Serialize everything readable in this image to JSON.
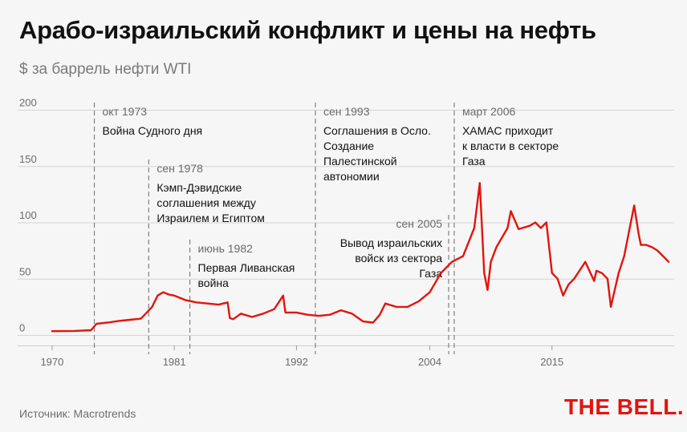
{
  "header": {
    "title": "Арабо-израильский конфликт и цены на нефть",
    "subtitle": "$ за баррель нефти WTI"
  },
  "footer": {
    "source": "Источник: Macrotrends",
    "logo": "THE BELL."
  },
  "colors": {
    "line": "#e3140d",
    "grid": "#d4d4d4",
    "annotation_line": "#808080",
    "logo": "#e3140d"
  },
  "chart_data": {
    "type": "line",
    "xlabel": "",
    "ylabel": "",
    "xlim": [
      1969.5,
      2026
    ],
    "ylim": [
      0,
      200
    ],
    "yticks": [
      0,
      50,
      100,
      150,
      200
    ],
    "xticks": [
      1970,
      1981,
      1992,
      2004,
      2015
    ],
    "grid": true,
    "series": [
      {
        "x": [
          1970,
          1971,
          1972,
          1973.5,
          1974,
          1975,
          1976,
          1977,
          1978,
          1979,
          1979.5,
          1980,
          1980.5,
          1981,
          1981.5,
          1982,
          1983,
          1984,
          1985,
          1985.8,
          1986,
          1986.3,
          1987,
          1988,
          1989,
          1990,
          1990.8,
          1991,
          1992,
          1993,
          1994,
          1995,
          1996,
          1997,
          1998,
          1998.9,
          1999.5,
          2000,
          2001,
          2002,
          2003,
          2004,
          2005,
          2005.7,
          2006,
          2007,
          2008.0,
          2008.5,
          2008.9,
          2009.2,
          2009.5,
          2010,
          2011,
          2011.3,
          2012,
          2013,
          2013.5,
          2014,
          2014.5,
          2015,
          2015.5,
          2016,
          2016.5,
          2017,
          2018,
          2018.8,
          2019,
          2019.5,
          2020,
          2020.3,
          2020.6,
          2021,
          2021.5,
          2022,
          2022.4,
          2022.8,
          2023,
          2023.5,
          2024,
          2024.5,
          2025,
          2025.5
        ],
        "values": [
          3.4,
          3.5,
          3.6,
          4.3,
          10,
          11,
          12.5,
          13.5,
          14.5,
          25,
          35,
          38,
          36,
          35,
          33,
          31,
          29,
          28,
          27,
          29,
          15,
          14,
          19,
          16,
          19,
          23,
          35,
          20,
          20,
          18,
          17,
          18,
          22,
          19,
          12,
          11,
          18,
          28,
          25,
          25,
          30,
          38,
          55,
          62,
          65,
          70,
          95,
          135,
          55,
          40,
          65,
          78,
          95,
          110,
          94,
          97,
          100,
          95,
          100,
          55,
          50,
          35,
          45,
          50,
          65,
          48,
          57,
          55,
          50,
          25,
          38,
          55,
          70,
          95,
          115,
          90,
          80,
          80,
          78,
          75,
          70,
          65
        ]
      }
    ],
    "annotations": [
      {
        "x": 1973.8,
        "date": "окт 1973",
        "lines": [
          "Война Судного дня"
        ]
      },
      {
        "x": 1978.7,
        "date": "сен 1978",
        "lines": [
          "Кэмп-Дэвидские",
          "соглашения между",
          "Израилем и Египтом"
        ]
      },
      {
        "x": 1982.4,
        "date": "июнь 1982",
        "lines": [
          "Первая Ливанская",
          "война"
        ]
      },
      {
        "x": 1993.7,
        "date": "сен 1993",
        "lines": [
          "Соглашения в Осло.",
          "Создание",
          "Палестинской",
          "автономии"
        ]
      },
      {
        "x": 2005.7,
        "date": "сен 2005",
        "lines": [
          "Вывод израильских",
          "войск из сектора",
          "Газа"
        ]
      },
      {
        "x": 2006.2,
        "date": "март 2006",
        "lines": [
          "ХАМАС приходит",
          "к власти в секторе",
          "Газа"
        ]
      }
    ]
  }
}
